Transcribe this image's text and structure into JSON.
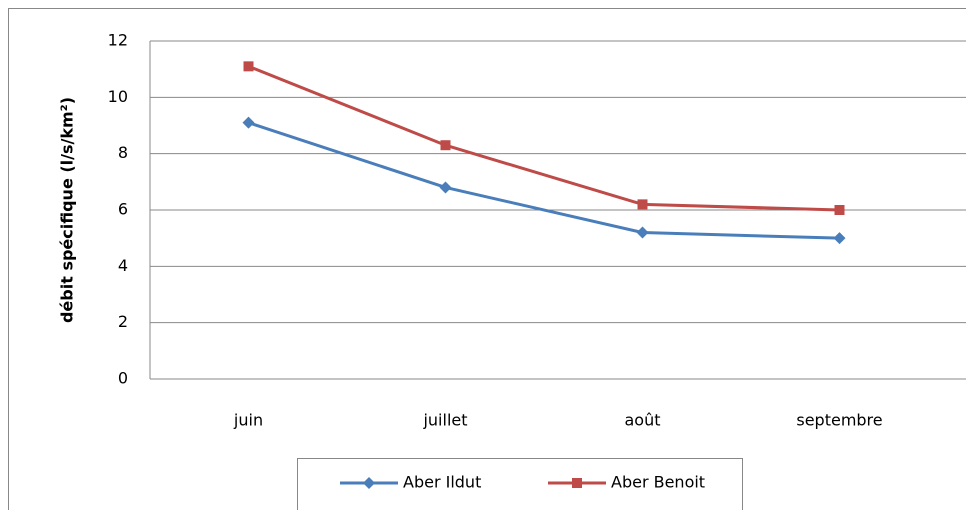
{
  "chart_data": {
    "type": "line",
    "y_label": "débit spécifique (l/s/km²)",
    "categories": [
      "juin",
      "juillet",
      "août",
      "septembre"
    ],
    "series": [
      {
        "name": "Aber Ildut",
        "color": "#4a7ebb",
        "marker": "diamond",
        "values": [
          9.1,
          6.8,
          5.2,
          5.0
        ]
      },
      {
        "name": "Aber Benoit",
        "color": "#be4b48",
        "marker": "square",
        "values": [
          11.1,
          8.3,
          6.2,
          6.0
        ]
      }
    ],
    "ylim": [
      0,
      12
    ],
    "yticks": [
      0,
      2,
      4,
      6,
      8,
      10,
      12
    ],
    "grid": true,
    "legend": "bottom"
  }
}
